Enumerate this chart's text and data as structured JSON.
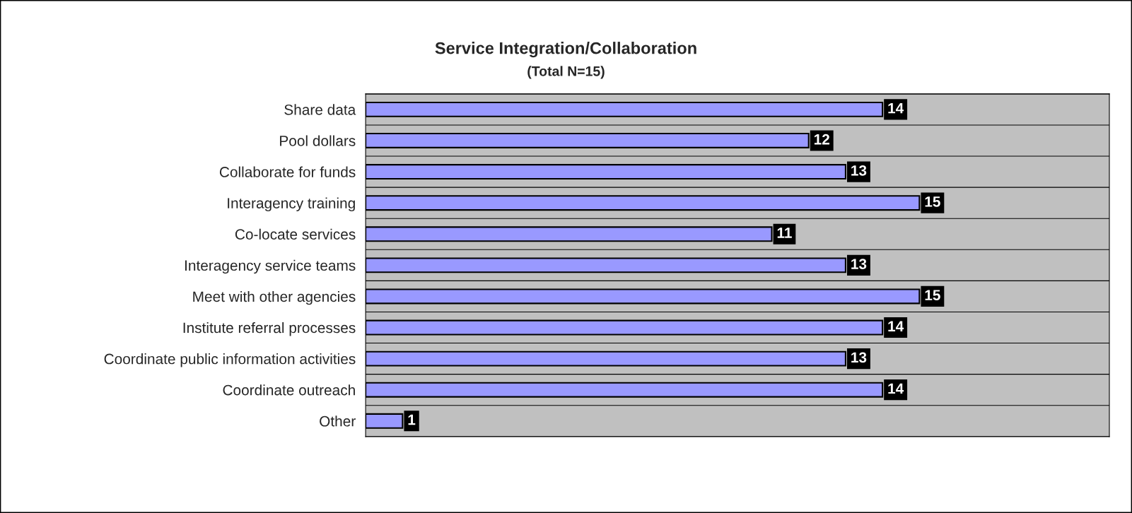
{
  "chart_data": {
    "type": "bar",
    "orientation": "horizontal",
    "title": "Service Integration/Collaboration",
    "subtitle": "(Total N=15)",
    "categories": [
      "Share data",
      "Pool dollars",
      "Collaborate for funds",
      "Interagency training",
      "Co-locate services",
      "Interagency service teams",
      "Meet with other agencies",
      "Institute referral processes",
      "Coordinate public information activities",
      "Coordinate outreach",
      "Other"
    ],
    "values": [
      14,
      12,
      13,
      15,
      11,
      13,
      15,
      14,
      13,
      14,
      1
    ],
    "color": "#9999ff",
    "data_labels": true,
    "grid": "y",
    "legend": false
  }
}
